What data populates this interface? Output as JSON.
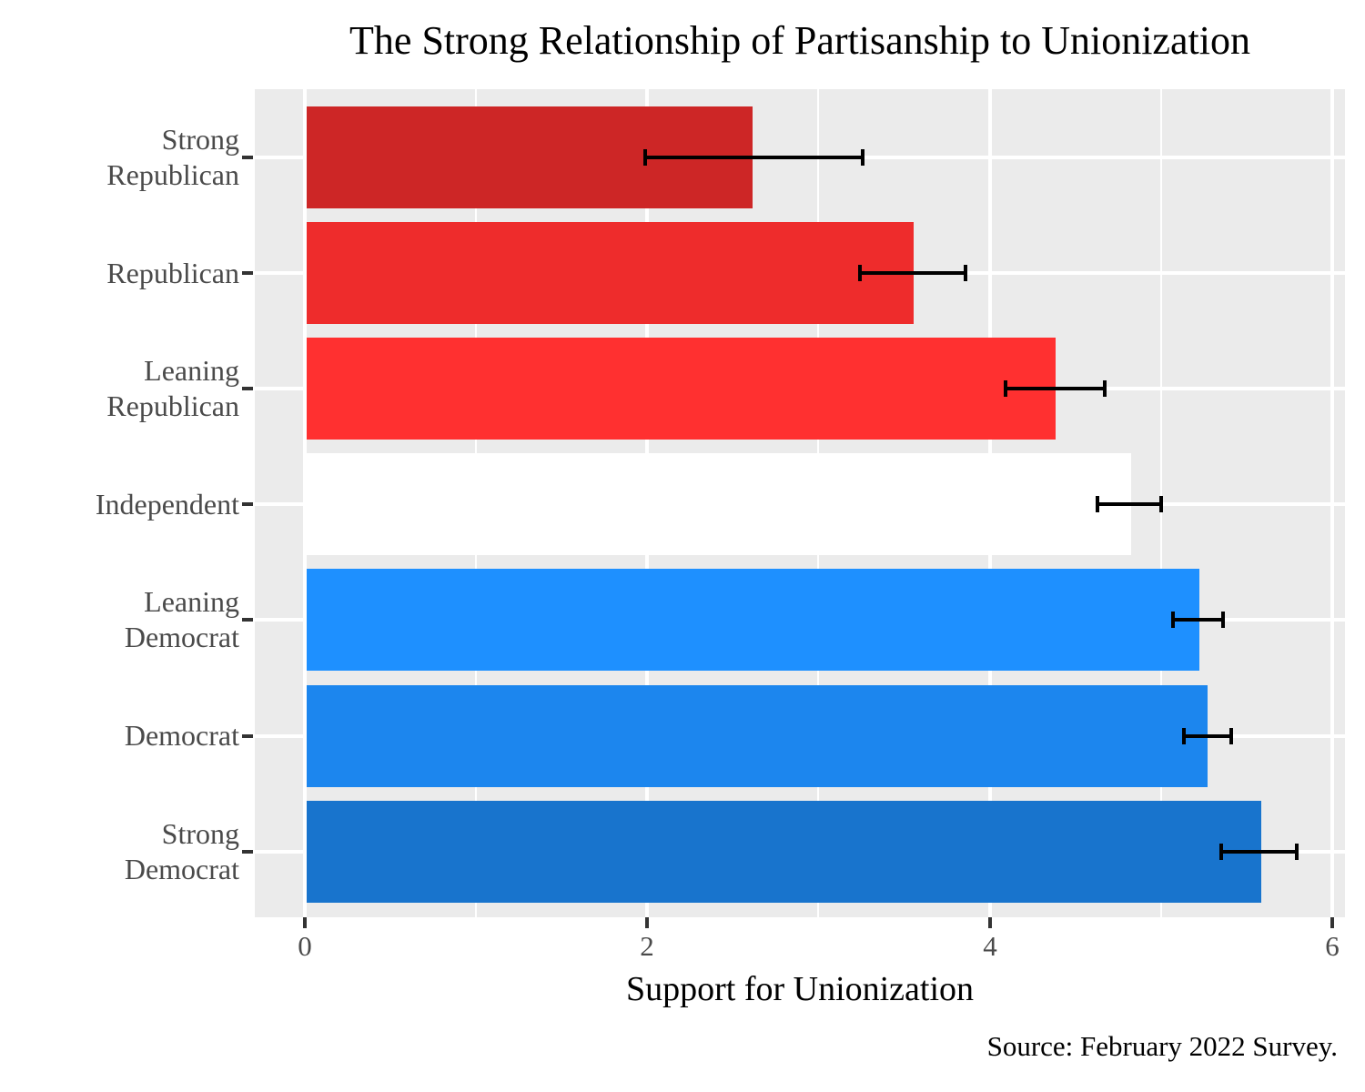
{
  "title": "The Strong Relationship of Partisanship to Unionization",
  "x_axis": {
    "label": "Support for Unionization",
    "tick_labels": [
      "0",
      "2",
      "4",
      "6"
    ]
  },
  "source_note": "Source: February 2022 Survey.",
  "chart_data": {
    "type": "bar",
    "orientation": "horizontal",
    "title": "The Strong Relationship of Partisanship to Unionization",
    "xlabel": "Support for Unionization",
    "ylabel": "",
    "xlim": [
      0,
      6
    ],
    "x_tick_values": [
      0,
      2,
      4,
      6
    ],
    "x_minor_gridline_values": [
      1,
      3,
      5
    ],
    "grid": "on",
    "legend": "none",
    "panel_bg_color": "#EBEBEB",
    "gridline_color": "#FFFFFF",
    "errorbar_color": "#000000",
    "categories": [
      "Strong Republican",
      "Republican",
      "Leaning Republican",
      "Independent",
      "Leaning Democrat",
      "Democrat",
      "Strong Democrat"
    ],
    "category_label_lines": [
      [
        "Strong",
        "Republican"
      ],
      [
        "Republican"
      ],
      [
        "Leaning",
        "Republican"
      ],
      [
        "Independent"
      ],
      [
        "Leaning",
        "Democrat"
      ],
      [
        "Democrat"
      ],
      [
        "Strong",
        "Democrat"
      ]
    ],
    "values": [
      2.61,
      3.55,
      4.38,
      4.82,
      5.22,
      5.27,
      5.58
    ],
    "ci_low": [
      1.99,
      3.24,
      4.09,
      4.63,
      5.07,
      5.13,
      5.35
    ],
    "ci_high": [
      3.26,
      3.86,
      4.67,
      5.0,
      5.36,
      5.41,
      5.79
    ],
    "bar_colors": [
      "#CD2626",
      "#EE2C2C",
      "#FF3030",
      "#FFFFFF",
      "#1E90FF",
      "#1C86EE",
      "#1874CD"
    ]
  }
}
